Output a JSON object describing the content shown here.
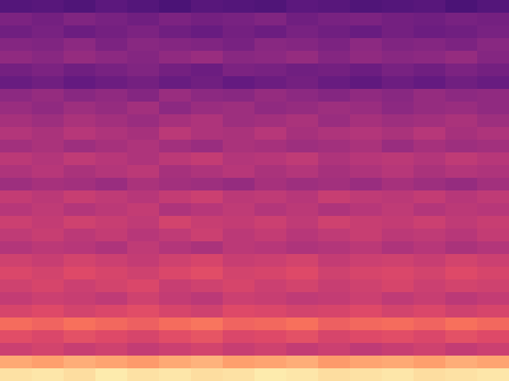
{
  "chart_data": {
    "type": "heatmap",
    "tick_labels": false,
    "zlim": [
      0,
      100
    ],
    "cells": [
      [
        26,
        27,
        25,
        28,
        26,
        24,
        27,
        26,
        25,
        28,
        27,
        25,
        26,
        27,
        24,
        26
      ],
      [
        36,
        34,
        37,
        35,
        33,
        36,
        34,
        35,
        37,
        33,
        35,
        36,
        34,
        33,
        35,
        34
      ],
      [
        33,
        35,
        32,
        34,
        36,
        33,
        31,
        34,
        32,
        35,
        33,
        31,
        34,
        32,
        33,
        35
      ],
      [
        38,
        37,
        40,
        36,
        39,
        38,
        37,
        35,
        39,
        38,
        36,
        40,
        37,
        38,
        36,
        39
      ],
      [
        41,
        39,
        42,
        40,
        38,
        41,
        43,
        39,
        40,
        42,
        38,
        41,
        39,
        40,
        42,
        38
      ],
      [
        34,
        36,
        33,
        35,
        37,
        34,
        32,
        36,
        35,
        33,
        34,
        32,
        35,
        33,
        36,
        34
      ],
      [
        31,
        33,
        30,
        32,
        34,
        31,
        33,
        30,
        32,
        34,
        31,
        29,
        32,
        30,
        33,
        31
      ],
      [
        40,
        42,
        39,
        41,
        38,
        43,
        40,
        39,
        42,
        40,
        38,
        41,
        39,
        42,
        40,
        41
      ],
      [
        43,
        41,
        44,
        42,
        45,
        40,
        43,
        44,
        41,
        42,
        44,
        43,
        40,
        42,
        43,
        41
      ],
      [
        46,
        44,
        47,
        45,
        43,
        46,
        48,
        44,
        45,
        47,
        43,
        46,
        44,
        45,
        47,
        44
      ],
      [
        49,
        47,
        50,
        48,
        46,
        51,
        48,
        47,
        50,
        46,
        48,
        49,
        47,
        50,
        46,
        48
      ],
      [
        45,
        47,
        44,
        46,
        48,
        45,
        43,
        47,
        46,
        44,
        45,
        47,
        43,
        46,
        44,
        45
      ],
      [
        51,
        49,
        52,
        50,
        48,
        51,
        53,
        49,
        50,
        52,
        48,
        50,
        51,
        49,
        52,
        50
      ],
      [
        48,
        50,
        47,
        49,
        51,
        46,
        48,
        50,
        47,
        49,
        46,
        48,
        50,
        47,
        49,
        48
      ],
      [
        44,
        46,
        45,
        43,
        47,
        45,
        44,
        42,
        46,
        44,
        45,
        43,
        46,
        44,
        42,
        45
      ],
      [
        53,
        51,
        54,
        52,
        50,
        53,
        55,
        51,
        52,
        50,
        54,
        52,
        51,
        53,
        50,
        52
      ],
      [
        50,
        52,
        49,
        51,
        53,
        48,
        50,
        52,
        49,
        51,
        48,
        50,
        52,
        49,
        51,
        50
      ],
      [
        55,
        53,
        56,
        54,
        52,
        57,
        54,
        53,
        55,
        52,
        56,
        54,
        53,
        55,
        52,
        54
      ],
      [
        52,
        54,
        51,
        53,
        50,
        52,
        55,
        51,
        53,
        50,
        52,
        54,
        51,
        52,
        50,
        53
      ],
      [
        49,
        51,
        50,
        48,
        52,
        49,
        47,
        51,
        50,
        48,
        49,
        51,
        48,
        50,
        47,
        49
      ],
      [
        56,
        54,
        57,
        55,
        53,
        56,
        58,
        54,
        55,
        57,
        53,
        55,
        56,
        54,
        57,
        55
      ],
      [
        59,
        57,
        60,
        58,
        56,
        59,
        61,
        57,
        58,
        60,
        56,
        58,
        59,
        57,
        60,
        58
      ],
      [
        56,
        58,
        55,
        57,
        59,
        54,
        56,
        58,
        55,
        57,
        54,
        56,
        58,
        55,
        57,
        56
      ],
      [
        53,
        55,
        54,
        52,
        56,
        53,
        51,
        55,
        54,
        52,
        53,
        55,
        52,
        54,
        51,
        53
      ],
      [
        58,
        60,
        57,
        59,
        61,
        58,
        56,
        60,
        59,
        57,
        58,
        60,
        57,
        59,
        56,
        58
      ],
      [
        69,
        67,
        70,
        68,
        66,
        69,
        71,
        67,
        68,
        70,
        66,
        68,
        69,
        67,
        70,
        68
      ],
      [
        61,
        59,
        62,
        60,
        58,
        61,
        63,
        59,
        60,
        62,
        58,
        60,
        61,
        59,
        62,
        60
      ],
      [
        55,
        57,
        54,
        56,
        53,
        55,
        57,
        54,
        56,
        53,
        55,
        52,
        54,
        56,
        53,
        55
      ],
      [
        82,
        80,
        83,
        81,
        79,
        82,
        84,
        80,
        81,
        83,
        79,
        81,
        82,
        80,
        83,
        81
      ],
      [
        94,
        95,
        93,
        96,
        94,
        95,
        93,
        94,
        96,
        95,
        93,
        94,
        95,
        93,
        94,
        95
      ]
    ]
  }
}
